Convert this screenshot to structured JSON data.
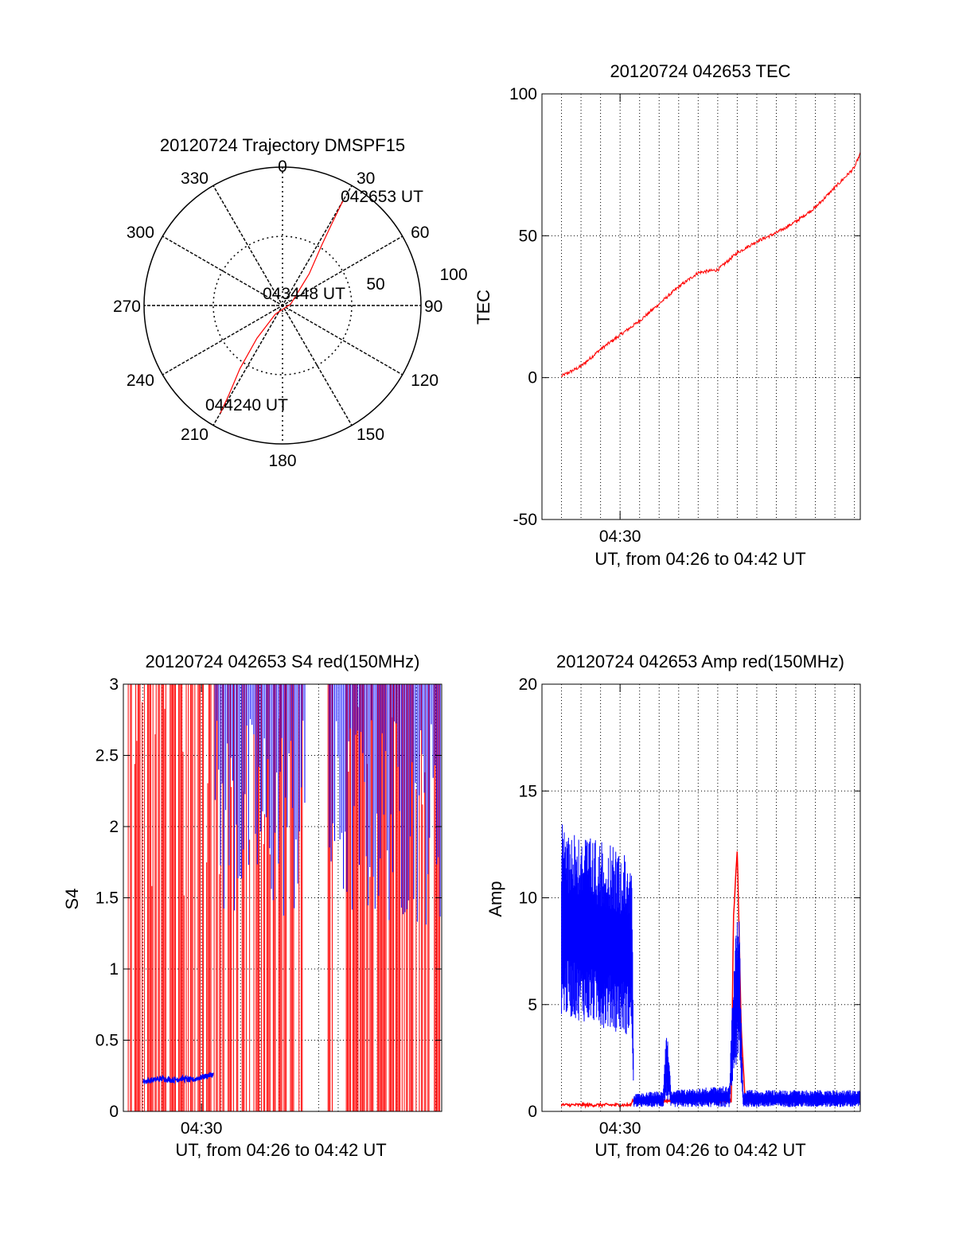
{
  "colors": {
    "red": "#ff0000",
    "blue": "#0000ff",
    "axis": "#000000",
    "background": "#ffffff"
  },
  "chart_data": [
    {
      "type": "polar",
      "title": "20120724 Trajectory DMSPF15",
      "azimuth_labels": [
        "0",
        "30",
        "60",
        "90",
        "120",
        "150",
        "180",
        "210",
        "240",
        "270",
        "300",
        "330"
      ],
      "ring_labels": [
        "100",
        "50"
      ],
      "series": [
        {
          "color": "#ff0000",
          "points": [
            {
              "az": 30,
              "r": 87
            },
            {
              "az": 31,
              "r": 70
            },
            {
              "az": 33,
              "r": 52
            },
            {
              "az": 40,
              "r": 30
            },
            {
              "az": 80,
              "r": 6
            },
            {
              "az": 220,
              "r": 8
            },
            {
              "az": 218,
              "r": 30
            },
            {
              "az": 214,
              "r": 55
            },
            {
              "az": 211,
              "r": 75
            },
            {
              "az": 210,
              "r": 90
            }
          ]
        }
      ],
      "annotations": [
        "042653 UT",
        "043448 UT",
        "044240 UT"
      ],
      "grid": true
    },
    {
      "type": "line",
      "title": "20120724 042653 TEC",
      "xlabel": "UT, from 04:26 to 04:42 UT",
      "ylabel": "TEC",
      "xlim": [
        26.0,
        42.3
      ],
      "ylim": [
        -50,
        100
      ],
      "yticks": [
        "100",
        "50",
        "0",
        "-50"
      ],
      "xticks": [
        {
          "x": 30,
          "label": "04:30"
        }
      ],
      "grid": true,
      "series": [
        {
          "color": "#ff0000",
          "x": [
            27.0,
            28.0,
            29.0,
            30.0,
            31.0,
            32.0,
            33.0,
            34.0,
            35.0,
            36.0,
            37.0,
            38.0,
            39.0,
            40.0,
            41.0,
            42.0,
            42.3
          ],
          "y": [
            0.5,
            4,
            10,
            15,
            20,
            26,
            32,
            37,
            38,
            44,
            48,
            51,
            55,
            60,
            67,
            74,
            79
          ]
        }
      ]
    },
    {
      "type": "line",
      "title": "20120724 042653 S4 red(150MHz)",
      "xlabel": "UT, from 04:26 to 04:42 UT",
      "ylabel": "S4",
      "xlim": [
        26.0,
        42.3
      ],
      "ylim": [
        0,
        3
      ],
      "yticks": [
        "3",
        "2.5",
        "2",
        "1.5",
        "1",
        "0.5",
        "0"
      ],
      "xticks": [
        {
          "x": 30,
          "label": "04:30"
        }
      ],
      "grid": true,
      "series": [
        {
          "color": "#0000ff",
          "x": [
            27.0,
            27.5,
            28.0,
            28.5,
            29.0,
            29.5,
            30.0,
            30.3,
            30.6
          ],
          "y": [
            0.21,
            0.22,
            0.23,
            0.22,
            0.23,
            0.22,
            0.24,
            0.25,
            0.26
          ]
        }
      ]
    },
    {
      "type": "line",
      "title": "20120724 042653 Amp red(150MHz)",
      "xlabel": "UT, from 04:26 to 04:42 UT",
      "ylabel": "Amp",
      "xlim": [
        26.0,
        42.3
      ],
      "ylim": [
        0,
        20
      ],
      "yticks": [
        "20",
        "15",
        "10",
        "5",
        "0"
      ],
      "xticks": [
        {
          "x": 30,
          "label": "04:30"
        }
      ],
      "grid": true,
      "series": [
        {
          "color": "#ff0000",
          "x": [
            27.0,
            30.6,
            30.6,
            35.7,
            35.8,
            36.0,
            36.2,
            36.4,
            42.3
          ],
          "y": [
            0.3,
            0.3,
            0.5,
            0.5,
            9,
            12.3,
            4,
            0.5,
            0.5
          ]
        },
        {
          "color": "#0000ff",
          "x": [
            27.0,
            30.6,
            30.7,
            32.2,
            32.4,
            32.6,
            35.6,
            35.9,
            36.1,
            36.3,
            42.3
          ],
          "y_low": [
            4.5,
            3.5,
            0.2,
            0.2,
            0.5,
            0.2,
            0.2,
            2,
            2,
            0.2,
            0.2
          ],
          "y_high": [
            13.5,
            12,
            0.8,
            1,
            4.4,
            1,
            1.2,
            9.5,
            9,
            1,
            1
          ]
        }
      ]
    }
  ]
}
